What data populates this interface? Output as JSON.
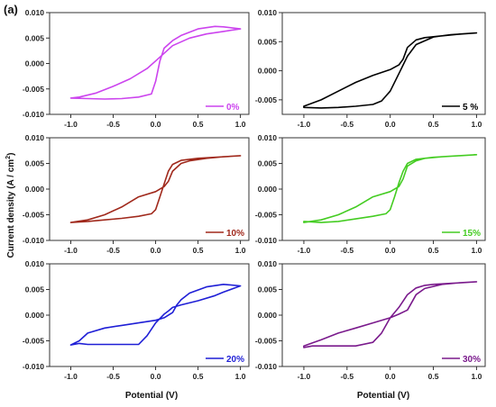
{
  "figure_label": "(a)",
  "ylabel": "Current density (A / cm",
  "ylabel_sup": "2",
  "ylabel_close": ")",
  "chart_data": [
    {
      "type": "line",
      "legend": "0%",
      "color": "#cc44ee",
      "legend_placement": "bottom-right",
      "xlim": [
        -1.25,
        1.1
      ],
      "ylim": [
        -0.01,
        0.01
      ],
      "xticks": [
        "-1.0",
        "-0.5",
        "0.0",
        "0.5",
        "1.0"
      ],
      "yticks": [
        "-0.010",
        "-0.005",
        "0.000",
        "0.005",
        "0.010"
      ],
      "x": [
        -1.0,
        -0.8,
        -0.6,
        -0.4,
        -0.2,
        -0.05,
        0.0,
        0.05,
        0.1,
        0.2,
        0.3,
        0.5,
        0.7,
        0.8,
        1.0,
        0.8,
        0.6,
        0.4,
        0.2,
        0.1,
        0.0,
        -0.1,
        -0.3,
        -0.5,
        -0.7,
        -0.9,
        -1.0
      ],
      "y": [
        -0.0068,
        -0.0069,
        -0.007,
        -0.0069,
        -0.0066,
        -0.006,
        -0.0035,
        0.0005,
        0.003,
        0.0045,
        0.0055,
        0.0068,
        0.0073,
        0.0072,
        0.0068,
        0.0063,
        0.0058,
        0.005,
        0.0035,
        0.002,
        0.0005,
        -0.001,
        -0.003,
        -0.0045,
        -0.0058,
        -0.0066,
        -0.0068
      ]
    },
    {
      "type": "line",
      "legend": "5 %",
      "color": "#000000",
      "legend_placement": "bottom-right",
      "xlim": [
        -1.25,
        1.1
      ],
      "ylim": [
        -0.0075,
        0.01
      ],
      "xticks": [
        "-1.0",
        "-0.5",
        "0.0",
        "0.5",
        "1.0"
      ],
      "yticks": [
        "-0.005",
        "0.000",
        "0.005",
        "0.010"
      ],
      "x": [
        -1.0,
        -0.8,
        -0.6,
        -0.4,
        -0.2,
        -0.1,
        0.0,
        0.1,
        0.2,
        0.3,
        0.5,
        0.7,
        1.0,
        0.8,
        0.6,
        0.4,
        0.3,
        0.2,
        0.15,
        0.1,
        0.0,
        -0.2,
        -0.4,
        -0.6,
        -0.8,
        -1.0
      ],
      "y": [
        -0.0063,
        -0.0064,
        -0.0063,
        -0.0061,
        -0.0058,
        -0.0052,
        -0.0035,
        -0.0005,
        0.0025,
        0.0045,
        0.0058,
        0.0062,
        0.0065,
        0.0063,
        0.006,
        0.0057,
        0.0053,
        0.004,
        0.002,
        0.001,
        0.0002,
        -0.0008,
        -0.002,
        -0.0035,
        -0.005,
        -0.0061
      ]
    },
    {
      "type": "line",
      "legend": "10%",
      "color": "#a0291c",
      "legend_placement": "bottom-right",
      "xlim": [
        -1.25,
        1.1
      ],
      "ylim": [
        -0.01,
        0.01
      ],
      "xticks": [
        "-1.0",
        "-0.5",
        "0.0",
        "0.5",
        "1.0"
      ],
      "yticks": [
        "-0.010",
        "-0.005",
        "0.000",
        "0.005",
        "0.010"
      ],
      "x": [
        -1.0,
        -0.8,
        -0.6,
        -0.4,
        -0.2,
        -0.05,
        0.0,
        0.05,
        0.1,
        0.15,
        0.2,
        0.3,
        0.5,
        0.7,
        1.0,
        0.8,
        0.6,
        0.4,
        0.3,
        0.2,
        0.15,
        0.1,
        0.0,
        -0.2,
        -0.4,
        -0.6,
        -0.8,
        -1.0
      ],
      "y": [
        -0.0065,
        -0.0063,
        -0.006,
        -0.0057,
        -0.0053,
        -0.0048,
        -0.004,
        -0.0015,
        0.001,
        0.0035,
        0.0048,
        0.0056,
        0.006,
        0.0062,
        0.0065,
        0.0063,
        0.006,
        0.0055,
        0.005,
        0.0035,
        0.0015,
        0.0005,
        -0.0005,
        -0.0015,
        -0.0035,
        -0.005,
        -0.006,
        -0.0065
      ]
    },
    {
      "type": "line",
      "legend": "15%",
      "color": "#44cc22",
      "legend_placement": "bottom-right",
      "xlim": [
        -1.25,
        1.1
      ],
      "ylim": [
        -0.01,
        0.01
      ],
      "xticks": [
        "-1.0",
        "-0.5",
        "0.0",
        "0.5",
        "1.0"
      ],
      "yticks": [
        "-0.010",
        "-0.005",
        "0.000",
        "0.005",
        "0.010"
      ],
      "x": [
        -1.0,
        -0.8,
        -0.6,
        -0.4,
        -0.2,
        -0.05,
        0.0,
        0.05,
        0.1,
        0.15,
        0.2,
        0.3,
        0.5,
        0.7,
        1.0,
        0.8,
        0.6,
        0.4,
        0.3,
        0.2,
        0.15,
        0.1,
        0.0,
        -0.2,
        -0.4,
        -0.6,
        -0.8,
        -1.0
      ],
      "y": [
        -0.0063,
        -0.0065,
        -0.0063,
        -0.0058,
        -0.0053,
        -0.0048,
        -0.004,
        -0.0015,
        0.0012,
        0.0035,
        0.005,
        0.0058,
        0.0062,
        0.0064,
        0.0067,
        0.0065,
        0.0063,
        0.006,
        0.0055,
        0.0045,
        0.002,
        0.0005,
        -0.0005,
        -0.0015,
        -0.0035,
        -0.005,
        -0.006,
        -0.0065
      ]
    },
    {
      "type": "line",
      "legend": "20%",
      "color": "#1f1fd6",
      "legend_placement": "bottom-right",
      "xlim": [
        -1.25,
        1.1
      ],
      "ylim": [
        -0.01,
        0.01
      ],
      "xticks": [
        "-1.0",
        "-0.5",
        "0.0",
        "0.5",
        "1.0"
      ],
      "yticks": [
        "-0.010",
        "-0.005",
        "0.000",
        "0.005",
        "0.010"
      ],
      "x": [
        -1.0,
        -0.9,
        -0.8,
        -0.6,
        -0.4,
        -0.2,
        -0.1,
        0.0,
        0.1,
        0.15,
        0.2,
        0.3,
        0.5,
        0.7,
        0.8,
        1.0,
        0.8,
        0.6,
        0.4,
        0.3,
        0.25,
        0.2,
        0.1,
        0.0,
        -0.2,
        -0.4,
        -0.6,
        -0.8,
        -0.9,
        -1.0
      ],
      "y": [
        -0.0058,
        -0.0055,
        -0.0057,
        -0.0057,
        -0.0057,
        -0.0057,
        -0.004,
        -0.0015,
        0.0002,
        0.0008,
        0.0015,
        0.002,
        0.0028,
        0.0038,
        0.0045,
        0.0057,
        0.006,
        0.0055,
        0.0043,
        0.003,
        0.002,
        0.0005,
        -0.0005,
        -0.001,
        -0.0015,
        -0.002,
        -0.0025,
        -0.0035,
        -0.005,
        -0.0058
      ]
    },
    {
      "type": "line",
      "legend": "30%",
      "color": "#7a1a8c",
      "legend_placement": "bottom-right",
      "xlim": [
        -1.25,
        1.1
      ],
      "ylim": [
        -0.01,
        0.01
      ],
      "xticks": [
        "-1.0",
        "-0.5",
        "0.0",
        "0.5",
        "1.0"
      ],
      "yticks": [
        "-0.010",
        "-0.005",
        "0.000",
        "0.005",
        "0.010"
      ],
      "x": [
        -1.0,
        -0.9,
        -0.8,
        -0.6,
        -0.4,
        -0.2,
        -0.1,
        0.0,
        0.1,
        0.2,
        0.3,
        0.4,
        0.5,
        0.7,
        1.0,
        0.8,
        0.6,
        0.4,
        0.3,
        0.25,
        0.2,
        0.1,
        0.0,
        -0.2,
        -0.4,
        -0.6,
        -0.8,
        -1.0
      ],
      "y": [
        -0.0063,
        -0.006,
        -0.006,
        -0.006,
        -0.006,
        -0.0053,
        -0.0035,
        -0.0005,
        0.0015,
        0.004,
        0.0053,
        0.0058,
        0.006,
        0.0062,
        0.0065,
        0.0063,
        0.006,
        0.0052,
        0.004,
        0.0025,
        0.001,
        0.0002,
        -0.0005,
        -0.0015,
        -0.0025,
        -0.0035,
        -0.0048,
        -0.006
      ]
    }
  ],
  "xlabels": [
    "Potential (V)",
    "Potential (V)"
  ]
}
